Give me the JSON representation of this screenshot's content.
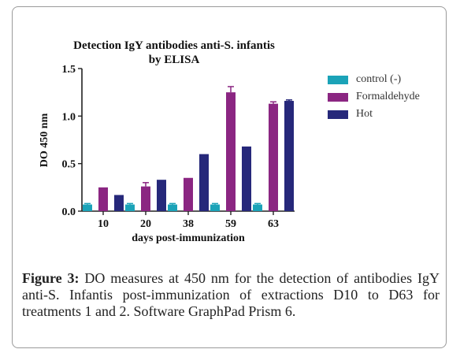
{
  "chart_data": {
    "type": "bar",
    "title": "Detection IgY antibodies anti-S. infantis",
    "subtitle": "by ELISA",
    "xlabel": "days post-immunization",
    "ylabel": "DO 450 nm",
    "categories": [
      "10",
      "20",
      "38",
      "59",
      "63"
    ],
    "ylim": [
      0,
      1.5
    ],
    "yticks": [
      "0.0",
      "0.5",
      "1.0",
      "1.5"
    ],
    "yticks_values": [
      0,
      0.5,
      1.0,
      1.5
    ],
    "grid": false,
    "legend_position": "top-right",
    "series": [
      {
        "name": "control (-)",
        "color": "#1ba3b8",
        "values": [
          0.07,
          0.07,
          0.07,
          0.07,
          0.07
        ],
        "errors": [
          0.01,
          0.01,
          0.01,
          0.01,
          0.01
        ]
      },
      {
        "name": "Formaldehyde",
        "color": "#8b2682",
        "values": [
          0.25,
          0.26,
          0.35,
          1.25,
          1.13
        ],
        "errors": [
          0.0,
          0.04,
          0.0,
          0.06,
          0.02
        ]
      },
      {
        "name": "Hot",
        "color": "#26287a",
        "values": [
          0.17,
          0.33,
          0.6,
          0.68,
          1.16
        ],
        "errors": [
          0.0,
          0.0,
          0.0,
          0.0,
          0.01
        ]
      }
    ]
  },
  "caption": {
    "label": "Figure 3:",
    "text": " DO measures at 450 nm for the detection of antibodies IgY anti-S. Infantis post-immunization of extractions D10 to D63 for treatments 1 and 2. Software GraphPad Prism 6."
  }
}
